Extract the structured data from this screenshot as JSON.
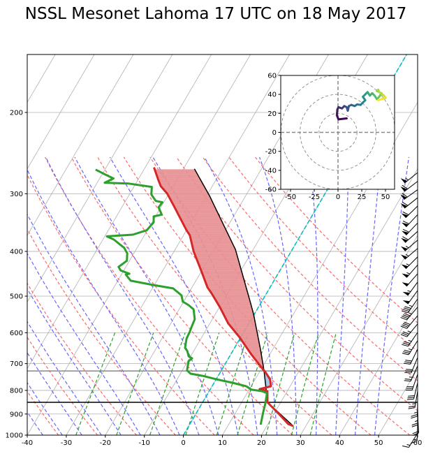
{
  "chart_data": {
    "type": "skew-t",
    "title": "NSSL Mesonet Lahoma 17 UTC on 18 May 2017",
    "xlabel": "",
    "ylabel": "",
    "xlim": [
      -40,
      60
    ],
    "ylim": [
      1000,
      150
    ],
    "y_scale": "log",
    "x_ticks": [
      "-40",
      "-30",
      "-20",
      "-10",
      "0",
      "10",
      "20",
      "30",
      "40",
      "50",
      "60"
    ],
    "y_ticks": [
      "1000",
      "900",
      "800",
      "700",
      "600",
      "500",
      "400",
      "300",
      "200"
    ],
    "grid": true,
    "colors": {
      "temperature": "#d62728",
      "dewpoint": "#2ca02c",
      "parcel": "#000000",
      "cape_fill": "#e88f91",
      "cin_fill": "#9ec3e6",
      "dry_adiabats": "#ff6666",
      "moist_adiabats": "#6666ff",
      "mixing_ratio": "#2ca02c",
      "zero_isotherm": "#00bfbf",
      "isotherms": "#b0b0b0"
    },
    "temperature": {
      "pressure": [
        955.7,
        946,
        901,
        849,
        803,
        795,
        784,
        757,
        731,
        706,
        668,
        614,
        573,
        529,
        493,
        479,
        440,
        400,
        369,
        360,
        321,
        300,
        289,
        280,
        263
      ],
      "temp_c": [
        26.8,
        25.2,
        21.4,
        16.6,
        14.9,
        12.6,
        15.1,
        13.8,
        11.6,
        9.1,
        5.2,
        -0.3,
        -5.3,
        -9.8,
        -14.1,
        -16.0,
        -20.2,
        -25.0,
        -28.4,
        -30.0,
        -36.5,
        -40.4,
        -43.2,
        -44.8,
        -47.8
      ]
    },
    "dewpoint": {
      "pressure": [
        949,
        892,
        852,
        811,
        803,
        797,
        784,
        770,
        757,
        744,
        736,
        724,
        691,
        682,
        675,
        658,
        647,
        618,
        597,
        581,
        561,
        534,
        523,
        514,
        498,
        481,
        473,
        463,
        449,
        447,
        440,
        432,
        419,
        404,
        393,
        377,
        371,
        368,
        360,
        346,
        336,
        333,
        321,
        313,
        311,
        301,
        290,
        285,
        284,
        278,
        273,
        266
      ],
      "dewpoint_c": [
        18.2,
        17.0,
        16.2,
        15.1,
        13.5,
        10.6,
        8.8,
        4.7,
        0.1,
        -4.0,
        -7.4,
        -8.8,
        -9.8,
        -9.3,
        -10.5,
        -11.6,
        -12.7,
        -13.7,
        -13.9,
        -14.2,
        -14.5,
        -16.3,
        -18.2,
        -20.2,
        -21.5,
        -24.7,
        -30.2,
        -36.7,
        -38.9,
        -38.1,
        -40.8,
        -41.9,
        -40.7,
        -41.7,
        -43.3,
        -47.2,
        -49.5,
        -43.1,
        -40.2,
        -39.6,
        -40.5,
        -38.7,
        -40.6,
        -40.4,
        -42.3,
        -44.4,
        -45.4,
        -52.0,
        -58.1,
        -56.5,
        -59.0,
        -62.4
      ]
    },
    "parcel_profile": {
      "pressure": [
        955.7,
        849,
        789,
        724,
        651,
        547,
        511,
        396,
        357,
        303,
        265
      ],
      "temp_c": [
        26.8,
        16.6,
        14.0,
        10.9,
        6.8,
        -0.2,
        -3.2,
        -14.6,
        -20.3,
        -29.3,
        -37.2
      ]
    },
    "horizontal_lines": [
      {
        "pressure": 849,
        "color": "#000000"
      },
      {
        "pressure": 726,
        "color": "#888888"
      }
    ],
    "dry_adiabats_t0_c": [
      -32,
      -22,
      -12,
      -2,
      8,
      18,
      28,
      38,
      48,
      58,
      68,
      78,
      88,
      98
    ],
    "moist_adiabats_t0_c": [
      -36,
      -31,
      -26,
      -21,
      -16,
      -11,
      -6,
      -1,
      4,
      9,
      14,
      19,
      24,
      29,
      34,
      39,
      44,
      49
    ],
    "mixing_ratios": [
      0.0004,
      0.001,
      0.002,
      0.004,
      0.007,
      0.01,
      0.016,
      0.024,
      0.032
    ],
    "wind_units": "knots",
    "wind": [
      {
        "p": 990,
        "u": 9.1,
        "v": 14.7
      },
      {
        "p": 949,
        "u": 0.5,
        "v": 13.7
      },
      {
        "p": 910,
        "u": -1.2,
        "v": 17.9
      },
      {
        "p": 873,
        "u": -0.7,
        "v": 24.0
      },
      {
        "p": 837,
        "u": 0.5,
        "v": 26.5
      },
      {
        "p": 803,
        "u": 4.2,
        "v": 25.2
      },
      {
        "p": 770,
        "u": 6.6,
        "v": 27.7
      },
      {
        "p": 738,
        "u": 9.1,
        "v": 26.5
      },
      {
        "p": 708,
        "u": 10.3,
        "v": 22.8
      },
      {
        "p": 679,
        "u": 11.5,
        "v": 27.7
      },
      {
        "p": 651,
        "u": 14.0,
        "v": 28.9
      },
      {
        "p": 624,
        "u": 17.6,
        "v": 27.7
      },
      {
        "p": 599,
        "u": 20.1,
        "v": 29.4
      },
      {
        "p": 574,
        "u": 23.8,
        "v": 28.9
      },
      {
        "p": 551,
        "u": 26.2,
        "v": 31.4
      },
      {
        "p": 528,
        "u": 28.7,
        "v": 33.8
      },
      {
        "p": 507,
        "u": 26.2,
        "v": 37.5
      },
      {
        "p": 486,
        "u": 29.9,
        "v": 41.2
      },
      {
        "p": 466,
        "u": 31.1,
        "v": 42.4
      },
      {
        "p": 447,
        "u": 33.6,
        "v": 38.7
      },
      {
        "p": 428,
        "u": 36.0,
        "v": 41.2
      },
      {
        "p": 411,
        "u": 38.5,
        "v": 38.7
      },
      {
        "p": 394,
        "u": 40.9,
        "v": 35.0
      },
      {
        "p": 378,
        "u": 43.4,
        "v": 37.5
      },
      {
        "p": 362,
        "u": 45.8,
        "v": 41.2
      },
      {
        "p": 347,
        "u": 40.9,
        "v": 43.6
      },
      {
        "p": 333,
        "u": 42.2,
        "v": 44.9
      },
      {
        "p": 319,
        "u": 43.4,
        "v": 42.4
      },
      {
        "p": 306,
        "u": 48.3,
        "v": 38.7
      },
      {
        "p": 294,
        "u": 50.2,
        "v": 36.3
      },
      {
        "p": 282,
        "u": 45.8,
        "v": 35.0
      },
      {
        "p": 270,
        "u": 42.2,
        "v": 33.8
      }
    ],
    "hodograph": {
      "xlim": [
        -60,
        60
      ],
      "ylim": [
        -60,
        60
      ],
      "x_ticks": [
        "-50",
        "-25",
        "0",
        "25",
        "50"
      ],
      "y_ticks": [
        "60",
        "40",
        "20",
        "0",
        "-20",
        "-40",
        "-60"
      ],
      "rings": [
        20,
        40,
        60
      ],
      "colormap": "viridis"
    }
  }
}
